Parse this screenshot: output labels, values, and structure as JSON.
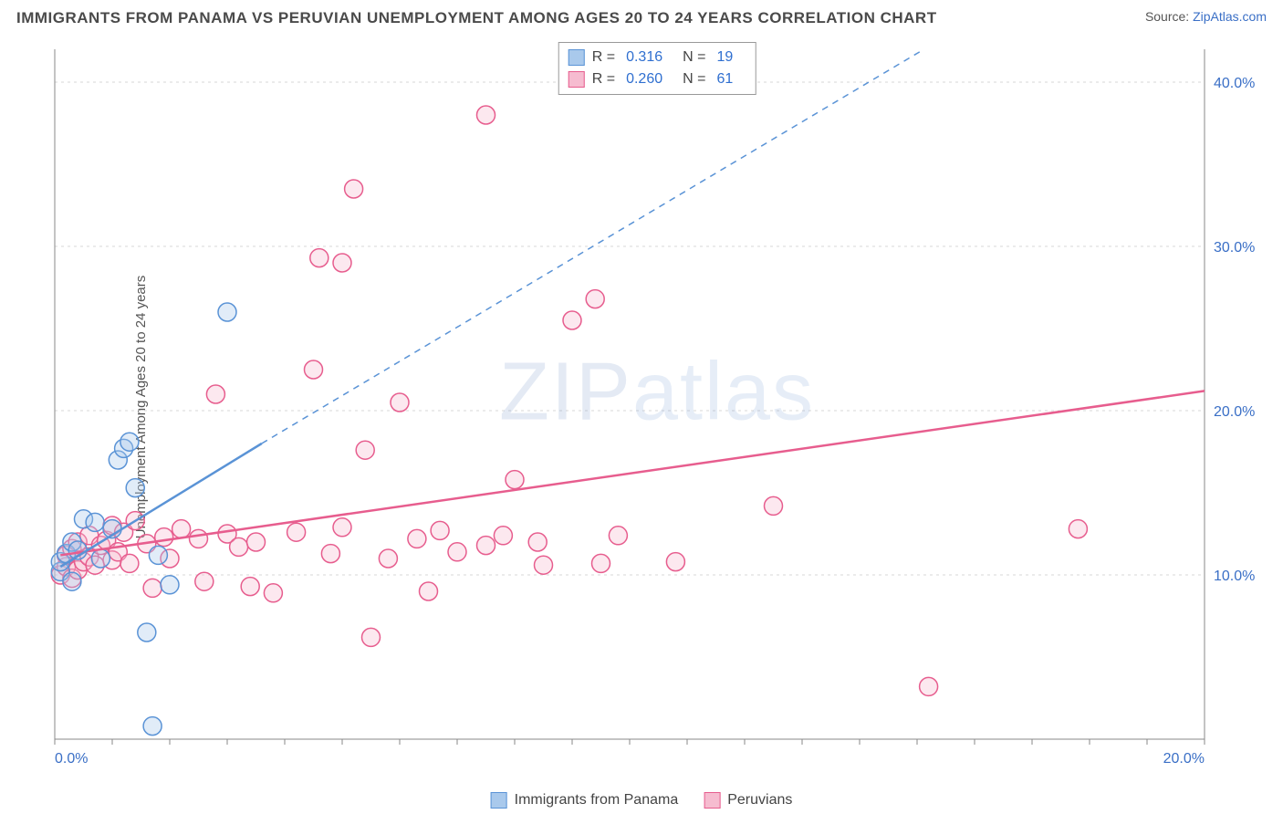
{
  "title": "IMMIGRANTS FROM PANAMA VS PERUVIAN UNEMPLOYMENT AMONG AGES 20 TO 24 YEARS CORRELATION CHART",
  "source_prefix": "Source: ",
  "source_link": "ZipAtlas.com",
  "ylabel": "Unemployment Among Ages 20 to 24 years",
  "watermark_a": "ZIP",
  "watermark_b": "atlas",
  "chart": {
    "type": "scatter",
    "background_color": "#ffffff",
    "grid_color": "#d7d7d7",
    "axis_color": "#888888",
    "tick_label_color": "#3a6fc6",
    "tick_fontsize": 16,
    "xlim": [
      0,
      20
    ],
    "ylim": [
      0,
      42
    ],
    "x_ticks": [
      0,
      20
    ],
    "x_tick_labels": [
      "0.0%",
      "20.0%"
    ],
    "y_ticks": [
      10,
      20,
      30,
      40
    ],
    "y_tick_labels": [
      "10.0%",
      "20.0%",
      "30.0%",
      "40.0%"
    ],
    "marker_radius": 10,
    "marker_stroke_width": 1.5,
    "marker_fill_opacity": 0.35,
    "line_width": 2.5,
    "series": [
      {
        "id": "panama",
        "name": "Immigrants from Panama",
        "color": "#5a93d6",
        "fill": "#a9c9ec",
        "R": "0.316",
        "N": "19",
        "trend": {
          "x1": 0.1,
          "y1": 10.5,
          "x2_solid": 3.6,
          "y2_solid": 18.0,
          "x2_dashed": 18.0,
          "y2_dashed": 48.0
        },
        "points": [
          [
            0.1,
            10.2
          ],
          [
            0.1,
            10.8
          ],
          [
            0.2,
            11.3
          ],
          [
            0.3,
            9.6
          ],
          [
            0.3,
            12.0
          ],
          [
            0.4,
            11.5
          ],
          [
            0.5,
            13.4
          ],
          [
            0.7,
            13.2
          ],
          [
            0.8,
            11.0
          ],
          [
            1.0,
            12.8
          ],
          [
            1.1,
            17.0
          ],
          [
            1.2,
            17.7
          ],
          [
            1.3,
            18.1
          ],
          [
            1.4,
            15.3
          ],
          [
            1.8,
            11.2
          ],
          [
            2.0,
            9.4
          ],
          [
            1.6,
            6.5
          ],
          [
            1.7,
            0.8
          ],
          [
            3.0,
            26.0
          ]
        ]
      },
      {
        "id": "peruvians",
        "name": "Peruvians",
        "color": "#e75d8e",
        "fill": "#f6bcd0",
        "R": "0.260",
        "N": "61",
        "trend": {
          "x1": 0.1,
          "y1": 11.2,
          "x2_solid": 20.0,
          "y2_solid": 21.2,
          "x2_dashed": 20.0,
          "y2_dashed": 21.2
        },
        "points": [
          [
            0.1,
            10.0
          ],
          [
            0.2,
            10.5
          ],
          [
            0.2,
            11.2
          ],
          [
            0.3,
            9.8
          ],
          [
            0.3,
            11.6
          ],
          [
            0.4,
            12.0
          ],
          [
            0.4,
            10.3
          ],
          [
            0.5,
            10.8
          ],
          [
            0.6,
            11.1
          ],
          [
            0.6,
            12.4
          ],
          [
            0.7,
            10.6
          ],
          [
            0.8,
            11.8
          ],
          [
            0.9,
            12.1
          ],
          [
            1.0,
            10.9
          ],
          [
            1.0,
            13.0
          ],
          [
            1.1,
            11.4
          ],
          [
            1.2,
            12.6
          ],
          [
            1.3,
            10.7
          ],
          [
            1.4,
            13.3
          ],
          [
            1.6,
            11.9
          ],
          [
            1.7,
            9.2
          ],
          [
            1.9,
            12.3
          ],
          [
            2.0,
            11.0
          ],
          [
            2.2,
            12.8
          ],
          [
            2.5,
            12.2
          ],
          [
            2.6,
            9.6
          ],
          [
            2.8,
            21.0
          ],
          [
            3.0,
            12.5
          ],
          [
            3.2,
            11.7
          ],
          [
            3.4,
            9.3
          ],
          [
            3.5,
            12.0
          ],
          [
            3.8,
            8.9
          ],
          [
            4.2,
            12.6
          ],
          [
            4.5,
            22.5
          ],
          [
            4.6,
            29.3
          ],
          [
            4.8,
            11.3
          ],
          [
            5.0,
            12.9
          ],
          [
            5.0,
            29.0
          ],
          [
            5.2,
            33.5
          ],
          [
            5.4,
            17.6
          ],
          [
            5.5,
            6.2
          ],
          [
            5.8,
            11.0
          ],
          [
            6.0,
            20.5
          ],
          [
            6.3,
            12.2
          ],
          [
            6.7,
            12.7
          ],
          [
            7.0,
            11.4
          ],
          [
            7.5,
            11.8
          ],
          [
            7.5,
            38.0
          ],
          [
            7.8,
            12.4
          ],
          [
            8.0,
            15.8
          ],
          [
            8.4,
            12.0
          ],
          [
            8.5,
            10.6
          ],
          [
            9.0,
            25.5
          ],
          [
            9.4,
            26.8
          ],
          [
            9.5,
            10.7
          ],
          [
            9.8,
            12.4
          ],
          [
            10.8,
            10.8
          ],
          [
            12.5,
            14.2
          ],
          [
            15.2,
            3.2
          ],
          [
            17.8,
            12.8
          ],
          [
            6.5,
            9.0
          ]
        ]
      }
    ]
  },
  "legend_top": {
    "r_label": "R  =",
    "n_label": "N  ="
  },
  "legend_bottom": [
    {
      "series": "panama"
    },
    {
      "series": "peruvians"
    }
  ]
}
